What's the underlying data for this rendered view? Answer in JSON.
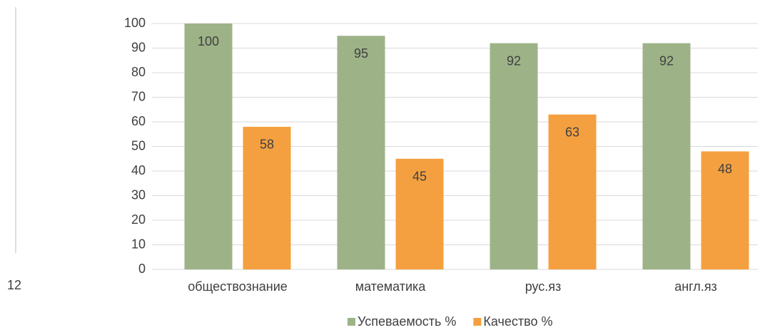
{
  "page_number": "12",
  "chart_data": {
    "type": "bar",
    "categories": [
      "обществознание",
      "математика",
      "рус.яз",
      "англ.яз"
    ],
    "series": [
      {
        "name": "Успеваемость %",
        "color": "#9db387",
        "values": [
          100,
          95,
          92,
          92
        ]
      },
      {
        "name": "Качество %",
        "color": "#f4a040",
        "values": [
          58,
          45,
          63,
          48
        ]
      }
    ],
    "ylim": [
      0,
      100
    ],
    "yticks": [
      0,
      10,
      20,
      30,
      40,
      50,
      60,
      70,
      80,
      90,
      100
    ],
    "grid": true,
    "legend": "bottom"
  }
}
